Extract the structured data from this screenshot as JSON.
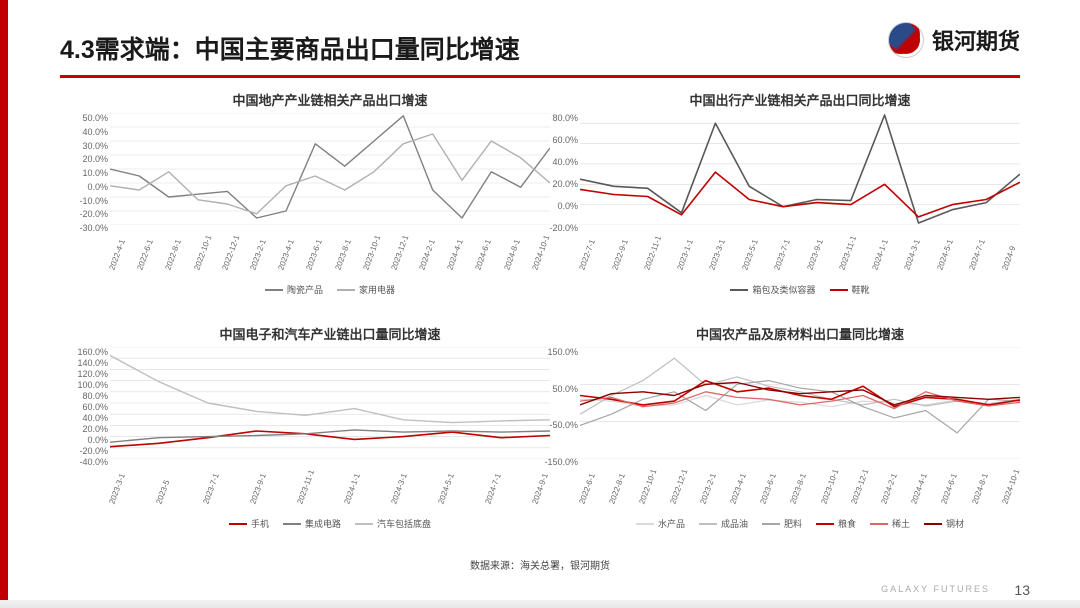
{
  "page_title": "4.3需求端：中国主要商品出口量同比增速",
  "brand_name": "银河期货",
  "footer_brand": "GALAXY FUTURES",
  "page_number": "13",
  "source_text": "数据来源：海关总署，银河期货",
  "accent_color": "#c00000",
  "grid_color": "#d9d9d9",
  "bg_color": "#ffffff",
  "label_fontsize": 9,
  "title_fontsize": 13,
  "chart1": {
    "title": "中国地产产业链相关产品出口增速",
    "type": "line",
    "x": [
      "2022-4-1",
      "2022-6-1",
      "2022-8-1",
      "2022-10-1",
      "2022-12-1",
      "2023-2-1",
      "2023-4-1",
      "2023-6-1",
      "2023-8-1",
      "2023-10-1",
      "2023-12-1",
      "2024-2-1",
      "2024-4-1",
      "2024-6-1",
      "2024-8-1",
      "2024-10-1"
    ],
    "ylim": [
      -30,
      50
    ],
    "ytick_step": 10,
    "y_suffix": ".0%",
    "series": [
      {
        "name": "陶瓷产品",
        "color": "#808080",
        "width": 1.4,
        "values": [
          10,
          5,
          -10,
          -8,
          -6,
          -25,
          -20,
          28,
          12,
          30,
          48,
          -5,
          -25,
          8,
          -3,
          25
        ]
      },
      {
        "name": "家用电器",
        "color": "#b0b0b0",
        "width": 1.4,
        "values": [
          -2,
          -5,
          8,
          -12,
          -15,
          -22,
          -2,
          5,
          -5,
          8,
          28,
          35,
          2,
          30,
          18,
          0
        ]
      }
    ]
  },
  "chart2": {
    "title": "中国出行产业链相关产品出口同比增速",
    "type": "line",
    "x": [
      "2022-7-1",
      "2022-9-1",
      "2022-11-1",
      "2023-1-1",
      "2023-3-1",
      "2023-5-1",
      "2023-7-1",
      "2023-9-1",
      "2023-11-1",
      "2024-1-1",
      "2024-3-1",
      "2024-5-1",
      "2024-7-1",
      "2024-9"
    ],
    "ylim": [
      -30,
      80
    ],
    "ytick_step": 20,
    "y_suffix": ".0%",
    "series": [
      {
        "name": "箱包及类似容器",
        "color": "#595959",
        "width": 1.6,
        "values": [
          15,
          8,
          6,
          -18,
          70,
          8,
          -12,
          -5,
          -6,
          78,
          -28,
          -15,
          -8,
          20
        ]
      },
      {
        "name": "鞋靴",
        "color": "#c00000",
        "width": 1.6,
        "values": [
          5,
          0,
          -2,
          -20,
          22,
          -5,
          -12,
          -8,
          -10,
          10,
          -22,
          -10,
          -5,
          12
        ]
      }
    ]
  },
  "chart3": {
    "title": "中国电子和汽车产业链出口量同比增速",
    "type": "line",
    "x": [
      "2023-3-1",
      "2023-5",
      "2023-7-1",
      "2023-9-1",
      "2023-11-1",
      "2024-1-1",
      "2024-3-1",
      "2024-5-1",
      "2024-7-1",
      "2024-9-1"
    ],
    "ylim": [
      -40,
      160
    ],
    "ytick_step": 20,
    "y_suffix": ".0%",
    "series": [
      {
        "name": "手机",
        "color": "#c00000",
        "width": 1.6,
        "values": [
          -18,
          -12,
          -2,
          10,
          5,
          -5,
          0,
          8,
          -2,
          2
        ]
      },
      {
        "name": "集成电路",
        "color": "#808080",
        "width": 1.4,
        "values": [
          -10,
          -2,
          0,
          2,
          5,
          12,
          8,
          10,
          8,
          10
        ]
      },
      {
        "name": "汽车包括底盘",
        "color": "#bfbfbf",
        "width": 1.4,
        "values": [
          145,
          98,
          60,
          45,
          38,
          50,
          30,
          25,
          28,
          30
        ]
      }
    ]
  },
  "chart4": {
    "title": "中国农产品及原材料出口量同比增速",
    "type": "line",
    "x": [
      "2022-6-1",
      "2022-8-1",
      "2022-10-1",
      "2022-12-1",
      "2023-2-1",
      "2023-4-1",
      "2023-6-1",
      "2023-8-1",
      "2023-10-1",
      "2023-12-1",
      "2024-2-1",
      "2024-4-1",
      "2024-6-1",
      "2024-8-1",
      "2024-10-1"
    ],
    "ylim": [
      -150,
      150
    ],
    "ytick_step": 100,
    "y_suffix": ".0%",
    "series": [
      {
        "name": "水产品",
        "color": "#d9d9d9",
        "width": 1.2,
        "values": [
          10,
          5,
          -8,
          -5,
          20,
          -5,
          8,
          2,
          -10,
          5,
          0,
          -5,
          8,
          -2,
          0
        ]
      },
      {
        "name": "成品油",
        "color": "#bfbfbf",
        "width": 1.2,
        "values": [
          -30,
          20,
          60,
          120,
          48,
          70,
          45,
          30,
          10,
          -5,
          10,
          -8,
          5,
          -2,
          10
        ]
      },
      {
        "name": "肥料",
        "color": "#a6a6a6",
        "width": 1.2,
        "values": [
          -60,
          -30,
          10,
          30,
          -20,
          50,
          60,
          40,
          30,
          -10,
          -40,
          -20,
          -80,
          10,
          5
        ]
      },
      {
        "name": "粮食",
        "color": "#c00000",
        "width": 1.6,
        "values": [
          20,
          10,
          -5,
          5,
          60,
          30,
          40,
          20,
          10,
          45,
          -10,
          15,
          10,
          -5,
          8
        ]
      },
      {
        "name": "稀土",
        "color": "#e06666",
        "width": 1.3,
        "values": [
          5,
          15,
          -10,
          0,
          30,
          15,
          10,
          -5,
          5,
          20,
          -15,
          30,
          5,
          -8,
          2
        ]
      },
      {
        "name": "钢材",
        "color": "#8b0000",
        "width": 1.4,
        "values": [
          -5,
          25,
          30,
          20,
          50,
          55,
          35,
          25,
          30,
          35,
          -5,
          20,
          15,
          10,
          15
        ]
      }
    ]
  }
}
